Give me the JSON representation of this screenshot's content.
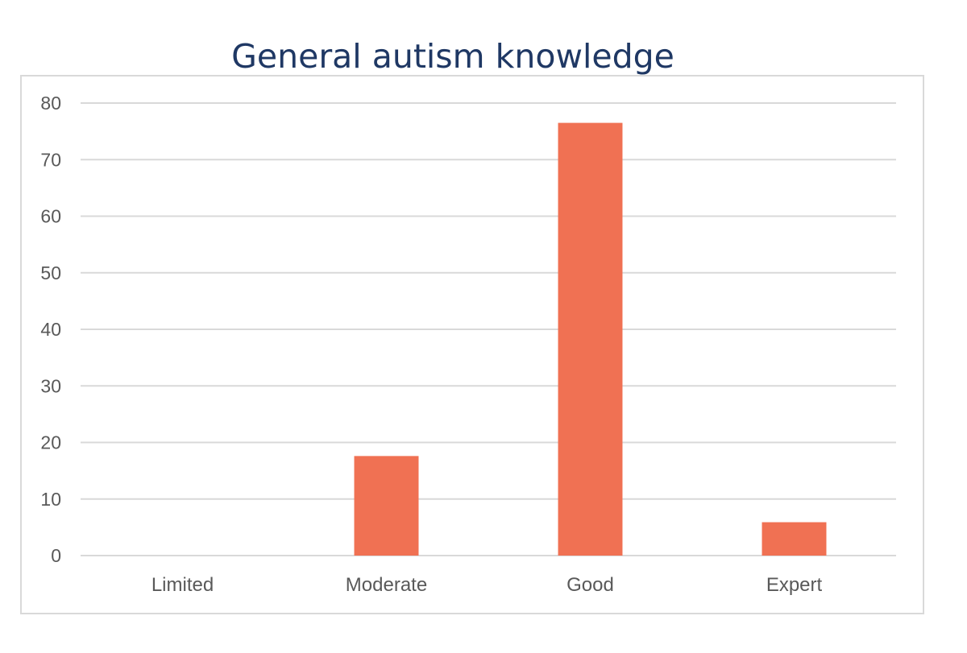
{
  "chart_data": {
    "type": "bar",
    "title": "General autism knowledge",
    "categories": [
      "Limited",
      "Moderate",
      "Good",
      "Expert"
    ],
    "values": [
      0,
      17.6,
      76.5,
      5.9
    ],
    "xlabel": "",
    "ylabel": "",
    "ylim": [
      0,
      80
    ],
    "yticks": [
      0,
      10,
      20,
      30,
      40,
      50,
      60,
      70,
      80
    ],
    "grid": true,
    "legend": "none",
    "bar_color": "#f07153",
    "grid_color": "#d9d9d9",
    "title_color": "#1f3864",
    "label_color": "#595959"
  }
}
